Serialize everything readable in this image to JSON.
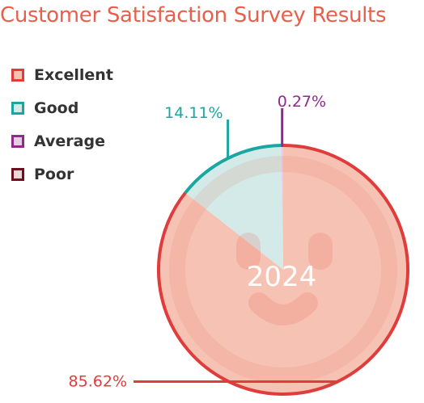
{
  "chart_data": {
    "type": "pie",
    "title": "Customer Satisfaction Survey Results",
    "center_label": "2024",
    "slices": [
      {
        "label": "Excellent",
        "value": 85.62,
        "display": "85.62%",
        "color": "#e03c3c",
        "fill": "#f6c2b3"
      },
      {
        "label": "Good",
        "value": 14.11,
        "display": "14.11%",
        "color": "#1aa7a1",
        "fill": "#d3eae8"
      },
      {
        "label": "Average",
        "value": 0.27,
        "display": "0.27%",
        "color": "#8e2a8c",
        "fill": "#e6cde6"
      },
      {
        "label": "Poor",
        "value": 0,
        "display": "",
        "color": "#6b1020",
        "fill": "#efd6d6"
      }
    ],
    "legend_position": "top-left"
  },
  "colors": {
    "title": "#e8604c",
    "legend_text": "#333333"
  }
}
